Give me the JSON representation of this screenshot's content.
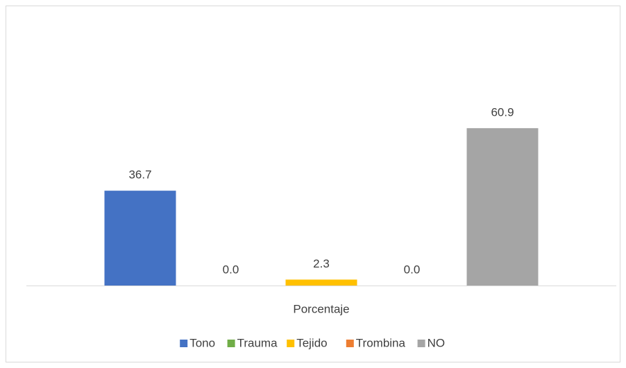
{
  "chart_data": {
    "type": "bar",
    "categories": [
      "Porcentaje"
    ],
    "series": [
      {
        "name": "Tono",
        "color": "#4472c4",
        "values": [
          36.7
        ],
        "value_labels": [
          "36.7"
        ]
      },
      {
        "name": "Trauma",
        "color": "#70ad47",
        "values": [
          0
        ],
        "value_labels": [
          "0.0"
        ]
      },
      {
        "name": "Tejido",
        "color": "#ffc000",
        "values": [
          2.3
        ],
        "value_labels": [
          "2.3"
        ]
      },
      {
        "name": "Trombina",
        "color": "#ed7d31",
        "values": [
          0
        ],
        "value_labels": [
          "0.0"
        ]
      },
      {
        "name": "NO",
        "color": "#a5a5a5",
        "values": [
          60.9
        ],
        "value_labels": [
          "60.9"
        ]
      }
    ],
    "ylim": [
      0,
      70
    ],
    "grid": false,
    "legend": "bottom"
  }
}
